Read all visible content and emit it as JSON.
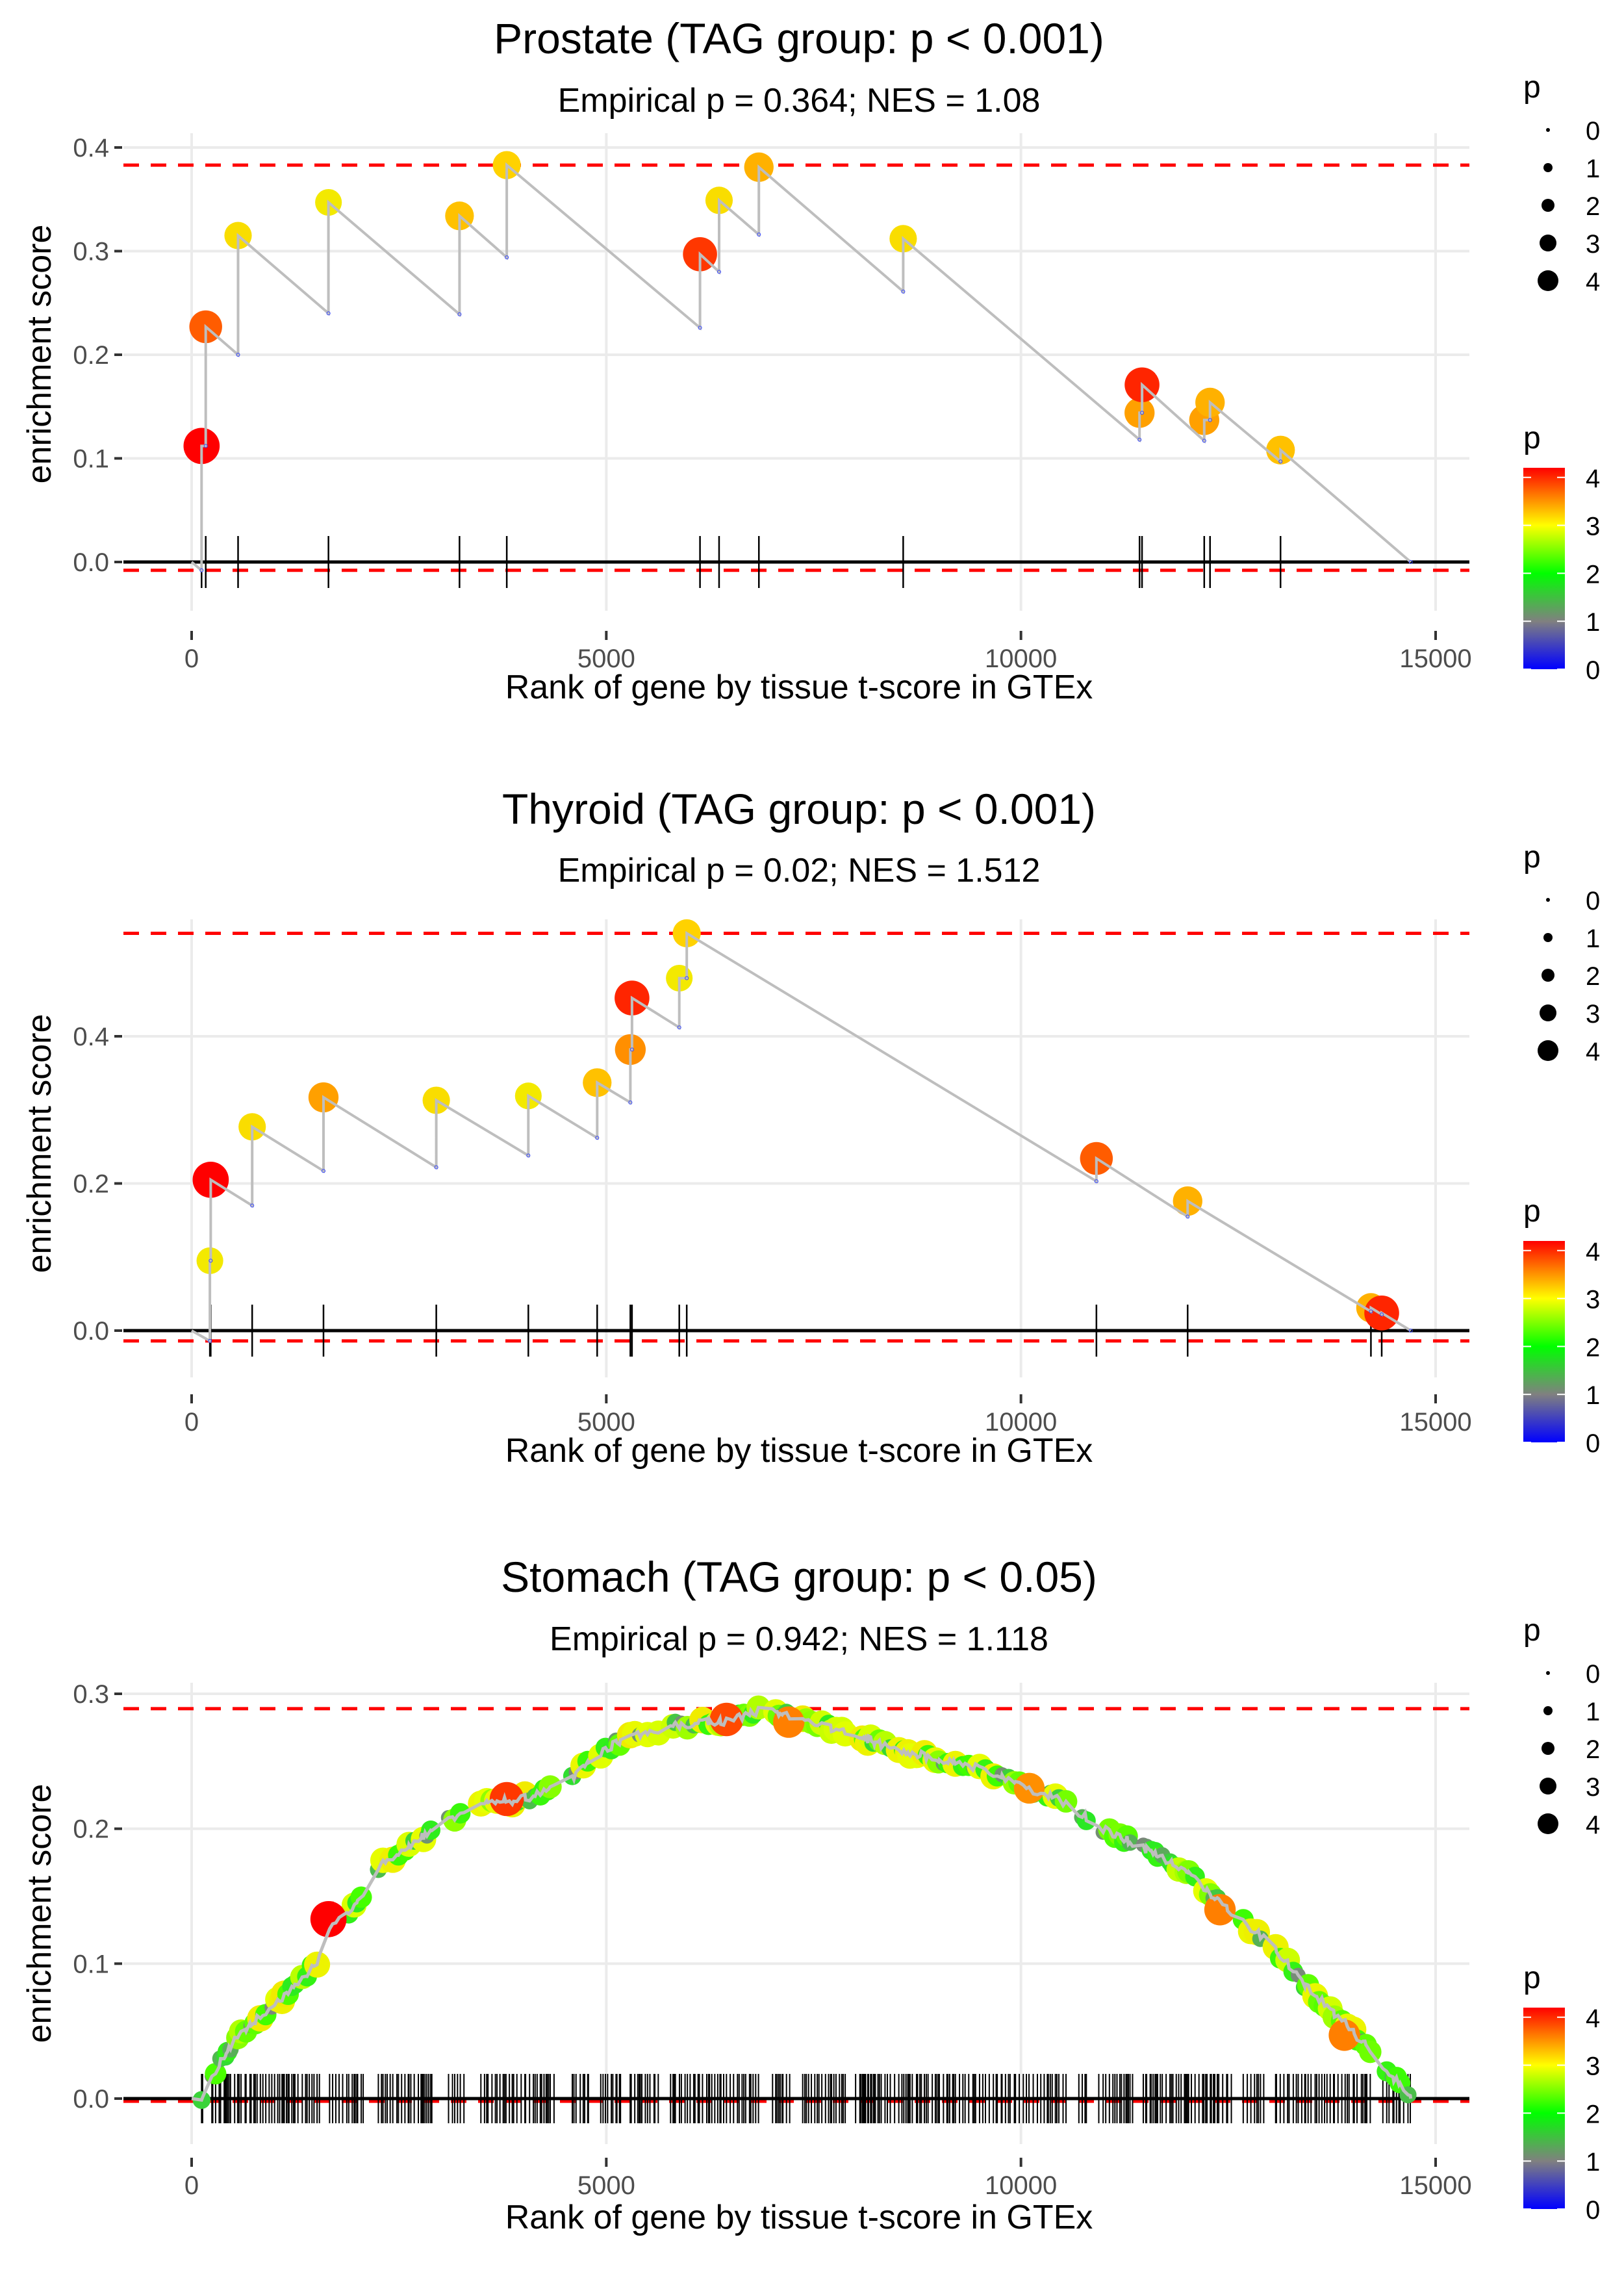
{
  "chart_data": [
    {
      "type": "line",
      "panel": "prostate",
      "title": "Prostate (TAG group: p < 0.001)",
      "subtitle": "Empirical p = 0.364; NES = 1.08",
      "xlabel": "Rank of gene by tissue t-score in GTEx",
      "ylabel": "enrichment score",
      "xlim": [
        -700,
        15500
      ],
      "ylim": [
        -0.03,
        0.41
      ],
      "xticks": [
        0,
        5000,
        10000,
        15000
      ],
      "xtick_labels": [
        "0",
        "5000",
        "10000",
        "15000"
      ],
      "yticks": [
        0.0,
        0.1,
        0.2,
        0.3,
        0.4
      ],
      "ytick_labels": [
        "0.0",
        "0.1",
        "0.2",
        "0.3",
        "0.4"
      ],
      "grid": true,
      "max_es": 0.383,
      "min_es": -0.008,
      "running_es": [
        [
          0,
          0.0
        ],
        [
          120,
          -0.008
        ],
        [
          120,
          0.112
        ],
        [
          170,
          0.112
        ],
        [
          170,
          0.227
        ],
        [
          560,
          0.2
        ],
        [
          560,
          0.315
        ],
        [
          1650,
          0.24
        ],
        [
          1650,
          0.347
        ],
        [
          3230,
          0.239
        ],
        [
          3230,
          0.334
        ],
        [
          3800,
          0.294
        ],
        [
          3800,
          0.383
        ],
        [
          6130,
          0.226
        ],
        [
          6130,
          0.297
        ],
        [
          6360,
          0.28
        ],
        [
          6360,
          0.349
        ],
        [
          6840,
          0.316
        ],
        [
          6840,
          0.381
        ],
        [
          8580,
          0.261
        ],
        [
          8580,
          0.312
        ],
        [
          11430,
          0.118
        ],
        [
          11430,
          0.144
        ],
        [
          11460,
          0.144
        ],
        [
          11460,
          0.171
        ],
        [
          12210,
          0.117
        ],
        [
          12210,
          0.137
        ],
        [
          12280,
          0.137
        ],
        [
          12280,
          0.154
        ],
        [
          13130,
          0.097
        ],
        [
          13130,
          0.108
        ],
        [
          14700,
          0.0
        ]
      ],
      "hits": [
        {
          "rank": 120,
          "es": 0.112,
          "p": 4.2
        },
        {
          "rank": 170,
          "es": 0.227,
          "p": 3.7
        },
        {
          "rank": 560,
          "es": 0.315,
          "p": 2.9
        },
        {
          "rank": 1650,
          "es": 0.347,
          "p": 2.8
        },
        {
          "rank": 3230,
          "es": 0.334,
          "p": 3.1
        },
        {
          "rank": 3800,
          "es": 0.383,
          "p": 3.0
        },
        {
          "rank": 6130,
          "es": 0.297,
          "p": 3.9
        },
        {
          "rank": 6360,
          "es": 0.349,
          "p": 2.9
        },
        {
          "rank": 6840,
          "es": 0.381,
          "p": 3.2
        },
        {
          "rank": 8580,
          "es": 0.312,
          "p": 2.9
        },
        {
          "rank": 11430,
          "es": 0.144,
          "p": 3.3
        },
        {
          "rank": 11460,
          "es": 0.171,
          "p": 4.0
        },
        {
          "rank": 12210,
          "es": 0.137,
          "p": 3.3
        },
        {
          "rank": 12280,
          "es": 0.154,
          "p": 3.2
        },
        {
          "rank": 13130,
          "es": 0.108,
          "p": 3.1
        }
      ]
    },
    {
      "type": "line",
      "panel": "thyroid",
      "title": "Thyroid (TAG group: p < 0.001)",
      "subtitle": "Empirical p = 0.02; NES = 1.512",
      "xlabel": "Rank of gene by tissue t-score in GTEx",
      "ylabel": "enrichment score",
      "xlim": [
        -700,
        15500
      ],
      "ylim": [
        -0.05,
        0.58
      ],
      "xticks": [
        0,
        5000,
        10000,
        15000
      ],
      "xtick_labels": [
        "0",
        "5000",
        "10000",
        "15000"
      ],
      "yticks": [
        0.0,
        0.2,
        0.4
      ],
      "ytick_labels": [
        "0.0",
        "0.2",
        "0.4"
      ],
      "grid": true,
      "max_es": 0.54,
      "min_es": -0.014,
      "running_es": [
        [
          0,
          0.0
        ],
        [
          220,
          -0.014
        ],
        [
          220,
          0.095
        ],
        [
          230,
          0.095
        ],
        [
          230,
          0.205
        ],
        [
          730,
          0.17
        ],
        [
          730,
          0.277
        ],
        [
          1590,
          0.217
        ],
        [
          1590,
          0.317
        ],
        [
          2950,
          0.222
        ],
        [
          2950,
          0.313
        ],
        [
          4060,
          0.238
        ],
        [
          4060,
          0.319
        ],
        [
          4890,
          0.262
        ],
        [
          4890,
          0.337
        ],
        [
          5290,
          0.31
        ],
        [
          5290,
          0.382
        ],
        [
          5310,
          0.382
        ],
        [
          5310,
          0.452
        ],
        [
          5880,
          0.412
        ],
        [
          5880,
          0.479
        ],
        [
          5970,
          0.479
        ],
        [
          5970,
          0.54
        ],
        [
          10910,
          0.203
        ],
        [
          10910,
          0.234
        ],
        [
          12010,
          0.155
        ],
        [
          12010,
          0.176
        ],
        [
          14220,
          0.026
        ],
        [
          14220,
          0.031
        ],
        [
          14350,
          0.022
        ],
        [
          14350,
          0.024
        ],
        [
          14700,
          0.0
        ]
      ],
      "hits": [
        {
          "rank": 220,
          "es": 0.095,
          "p": 2.8
        },
        {
          "rank": 230,
          "es": 0.205,
          "p": 4.2
        },
        {
          "rank": 730,
          "es": 0.277,
          "p": 2.9
        },
        {
          "rank": 1590,
          "es": 0.317,
          "p": 3.3
        },
        {
          "rank": 2950,
          "es": 0.313,
          "p": 2.9
        },
        {
          "rank": 4060,
          "es": 0.319,
          "p": 2.8
        },
        {
          "rank": 4890,
          "es": 0.337,
          "p": 3.1
        },
        {
          "rank": 5290,
          "es": 0.382,
          "p": 3.4
        },
        {
          "rank": 5310,
          "es": 0.452,
          "p": 4.0
        },
        {
          "rank": 5880,
          "es": 0.479,
          "p": 2.8
        },
        {
          "rank": 5970,
          "es": 0.54,
          "p": 3.0
        },
        {
          "rank": 10910,
          "es": 0.234,
          "p": 3.7
        },
        {
          "rank": 12010,
          "es": 0.176,
          "p": 3.2
        },
        {
          "rank": 14220,
          "es": 0.031,
          "p": 3.2
        },
        {
          "rank": 14350,
          "es": 0.024,
          "p": 4.0
        }
      ]
    },
    {
      "type": "line",
      "panel": "stomach",
      "title": "Stomach (TAG group: p < 0.05)",
      "subtitle": "Empirical p = 0.942; NES = 1.118",
      "xlabel": "Rank of gene by tissue t-score in GTEx",
      "ylabel": "enrichment score",
      "xlim": [
        -700,
        15500
      ],
      "ylim": [
        -0.035,
        0.31
      ],
      "xticks": [
        0,
        5000,
        10000,
        15000
      ],
      "xtick_labels": [
        "0",
        "5000",
        "10000",
        "15000"
      ],
      "yticks": [
        0.0,
        0.1,
        0.2,
        0.3
      ],
      "ytick_labels": [
        "0.0",
        "0.1",
        "0.2",
        "0.3"
      ],
      "grid": true,
      "max_es": 0.289,
      "min_es": -0.002,
      "hit_rank_range": [
        120,
        14700
      ],
      "running_es_smooth": [
        [
          0,
          0.0
        ],
        [
          150,
          0.0
        ],
        [
          300,
          0.022
        ],
        [
          500,
          0.042
        ],
        [
          800,
          0.06
        ],
        [
          1100,
          0.075
        ],
        [
          1500,
          0.1
        ],
        [
          1700,
          0.128
        ],
        [
          2000,
          0.145
        ],
        [
          2300,
          0.175
        ],
        [
          2700,
          0.19
        ],
        [
          3000,
          0.205
        ],
        [
          3500,
          0.218
        ],
        [
          4000,
          0.222
        ],
        [
          4500,
          0.232
        ],
        [
          5000,
          0.26
        ],
        [
          5500,
          0.272
        ],
        [
          6000,
          0.278
        ],
        [
          6500,
          0.28
        ],
        [
          6900,
          0.289
        ],
        [
          7500,
          0.278
        ],
        [
          8000,
          0.27
        ],
        [
          8500,
          0.258
        ],
        [
          9000,
          0.252
        ],
        [
          9500,
          0.245
        ],
        [
          10000,
          0.232
        ],
        [
          10500,
          0.22
        ],
        [
          11000,
          0.2
        ],
        [
          11500,
          0.185
        ],
        [
          12000,
          0.168
        ],
        [
          12500,
          0.14
        ],
        [
          13000,
          0.115
        ],
        [
          13500,
          0.08
        ],
        [
          14000,
          0.05
        ],
        [
          14500,
          0.015
        ],
        [
          14700,
          0.0
        ]
      ],
      "highlighted_hits": [
        {
          "rank": 1650,
          "es": 0.133,
          "p": 4.2
        },
        {
          "rank": 3800,
          "es": 0.222,
          "p": 3.9
        },
        {
          "rank": 6450,
          "es": 0.281,
          "p": 3.8
        },
        {
          "rank": 7200,
          "es": 0.279,
          "p": 3.5
        },
        {
          "rank": 10100,
          "es": 0.23,
          "p": 3.4
        },
        {
          "rank": 12400,
          "es": 0.14,
          "p": 3.5
        },
        {
          "rank": 13900,
          "es": 0.047,
          "p": 3.5
        }
      ],
      "typical_hit_p_range": [
        1.0,
        2.8
      ]
    }
  ],
  "legend": {
    "size_title": "p",
    "size_labels": [
      "0",
      "1",
      "2",
      "3",
      "4"
    ],
    "color_title": "p",
    "color_labels": [
      "4",
      "3",
      "2",
      "1",
      "0"
    ],
    "color_scale": [
      "#0000ff",
      "#808080",
      "#00ff00",
      "#ffff00",
      "#ff8000",
      "#ff0000"
    ],
    "color_range": [
      0,
      4.2
    ]
  },
  "colors": {
    "running_line": "#bebebe",
    "max_min_line": "#ff0000",
    "baseline": "#000000",
    "grid": "#ebebeb",
    "rug": "#000000"
  }
}
